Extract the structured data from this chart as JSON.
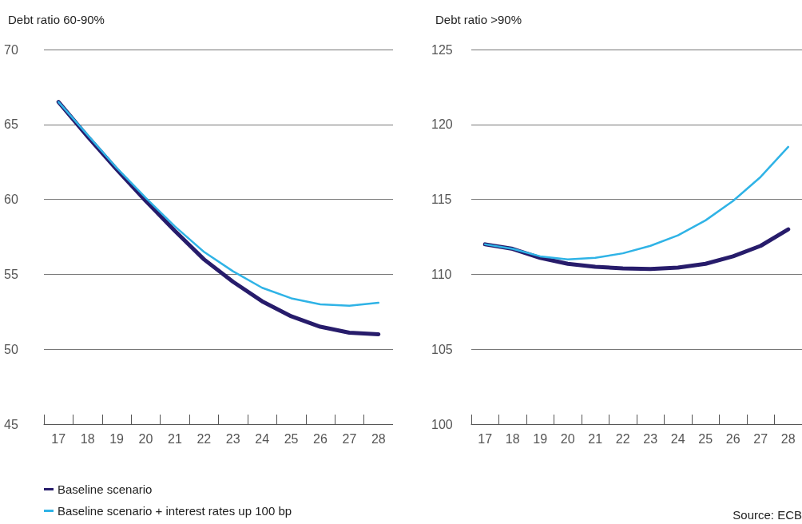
{
  "chart_data": [
    {
      "type": "line",
      "title": "Debt ratio 60-90%",
      "categories": [
        "17",
        "18",
        "19",
        "20",
        "21",
        "22",
        "23",
        "24",
        "25",
        "26",
        "27",
        "28"
      ],
      "ylim": [
        45,
        70
      ],
      "yticks": [
        45,
        50,
        55,
        60,
        65,
        70
      ],
      "grid": "y",
      "legend": "bottom left",
      "marker": "none",
      "line_style": "solid",
      "series": [
        {
          "name": "Baseline scenario",
          "color": "#271c6b",
          "values": [
            66.5,
            64.2,
            62.0,
            59.9,
            57.9,
            56.0,
            54.5,
            53.2,
            52.2,
            51.5,
            51.1,
            51.0
          ]
        },
        {
          "name": "Baseline scenario + interest rates up 100 bp",
          "color": "#2fb3e6",
          "values": [
            66.5,
            64.3,
            62.1,
            60.1,
            58.2,
            56.5,
            55.2,
            54.1,
            53.4,
            53.0,
            52.9,
            53.1
          ]
        }
      ]
    },
    {
      "type": "line",
      "title": "Debt ratio >90%",
      "categories": [
        "17",
        "18",
        "19",
        "20",
        "21",
        "22",
        "23",
        "24",
        "25",
        "26",
        "27",
        "28"
      ],
      "ylim": [
        100,
        125
      ],
      "yticks": [
        100,
        105,
        110,
        115,
        120,
        125
      ],
      "grid": "y",
      "marker": "none",
      "line_style": "solid",
      "annotations": [
        "Source: ECB"
      ],
      "series": [
        {
          "color": "#271c6b",
          "values": [
            112.0,
            111.7,
            111.1,
            110.7,
            110.5,
            110.4,
            110.35,
            110.45,
            110.7,
            111.2,
            111.9,
            113.0
          ]
        },
        {
          "color": "#2fb3e6",
          "values": [
            112.0,
            111.7,
            111.2,
            111.0,
            111.1,
            111.4,
            111.9,
            112.6,
            113.6,
            114.9,
            116.5,
            118.5
          ]
        }
      ]
    }
  ]
}
